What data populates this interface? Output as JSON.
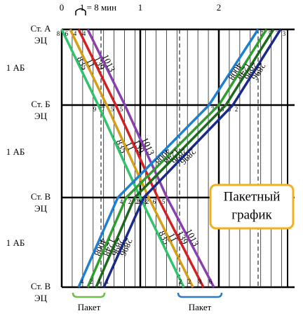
{
  "scale_note": "1 = 8 мин",
  "hours": [
    "0",
    "1",
    "2"
  ],
  "stations": [
    {
      "name": "Ст. А",
      "sub": "ЭЦ"
    },
    {
      "name": "Ст. Б",
      "sub": "ЭЦ"
    },
    {
      "name": "Ст. В",
      "sub": "ЭЦ"
    },
    {
      "name": "Ст. В",
      "sub": "ЭЦ"
    }
  ],
  "blocks": [
    "1 АБ",
    "1 АБ",
    "1 АБ"
  ],
  "trains": [
    {
      "number": "835",
      "color": "#2fc46c",
      "direction": "down",
      "minutes": [
        "8",
        "9",
        "2",
        "2"
      ]
    },
    {
      "number": "11",
      "color": "#d4a017",
      "direction": "down",
      "minutes": [
        "6",
        "7",
        "8",
        "2"
      ]
    },
    {
      "number": "139",
      "color": "#d42020",
      "direction": "down",
      "minutes": [
        "4",
        "5",
        "6",
        "8"
      ]
    },
    {
      "number": "1013",
      "color": "#8a3fb0",
      "direction": "down",
      "minutes": [
        "4",
        "5",
        "5",
        "6"
      ]
    },
    {
      "number": "4008",
      "color": "#1f7fd0",
      "direction": "up",
      "minutes": [
        "4",
        "4",
        "7",
        "7"
      ]
    },
    {
      "number": "1248",
      "color": "#2e9e2e",
      "direction": "up",
      "minutes": [
        "2",
        "2",
        "5",
        "5"
      ]
    },
    {
      "number": "2896",
      "color": "#1c6b1c",
      "direction": "up",
      "minutes": [
        "1",
        "2",
        "3",
        "3"
      ]
    },
    {
      "number": "2896",
      "color": "#1a2a8a",
      "direction": "up",
      "minutes": [
        "1",
        "2",
        "2",
        "3"
      ]
    }
  ],
  "legend": {
    "line1": "Пакетный",
    "line2": "график"
  },
  "packets": [
    "Пакет",
    "Пакет"
  ]
}
